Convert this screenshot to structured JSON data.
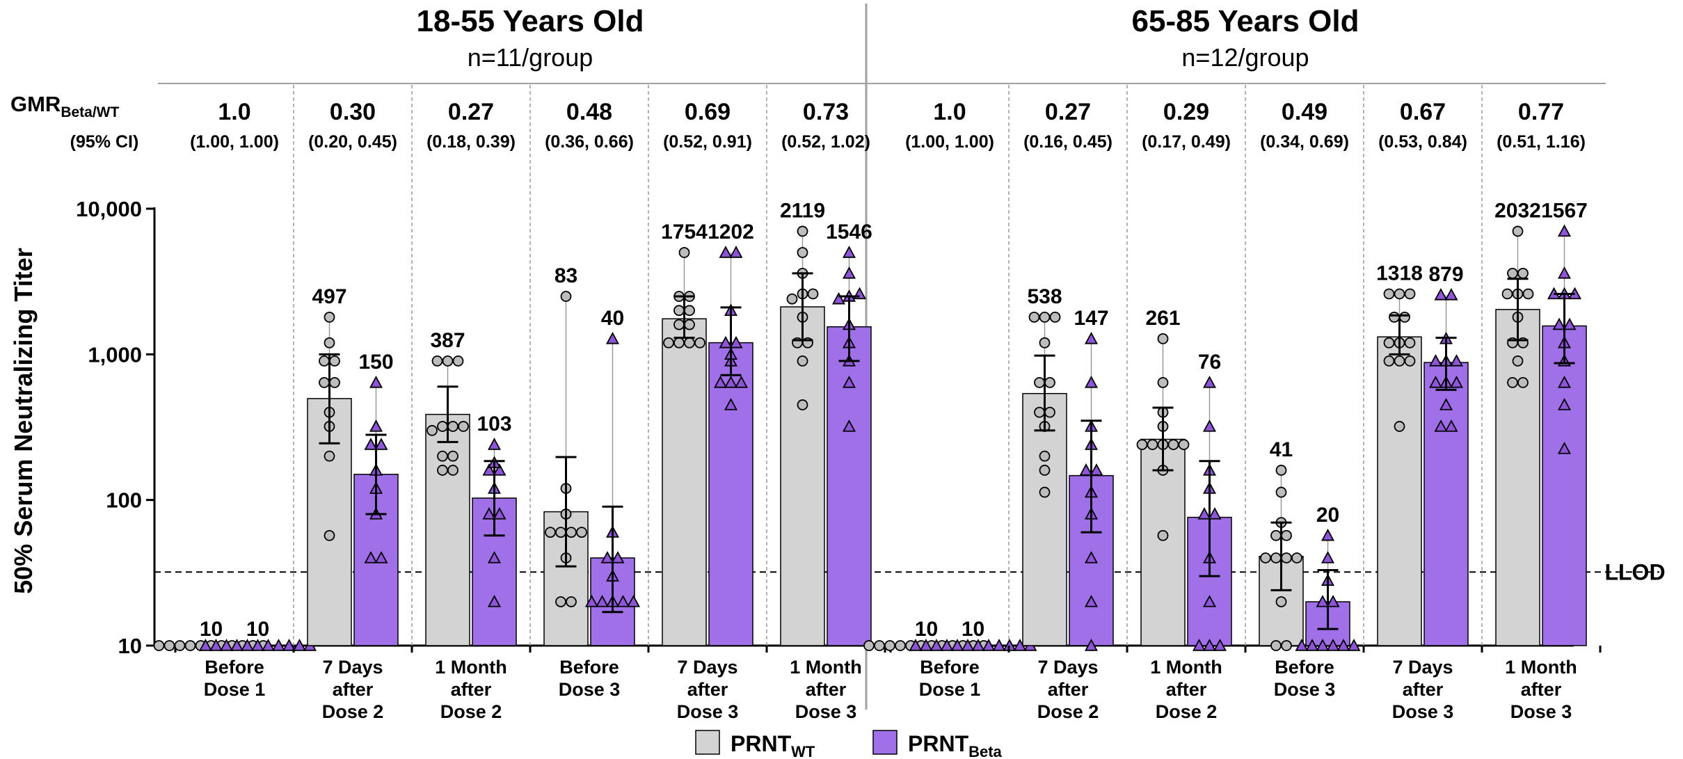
{
  "chart_data": {
    "type": "bar",
    "ylabel": "50% Serum Neutralizing Titer",
    "y_scale": "log",
    "ylim": [
      10,
      10000
    ],
    "y_ticks": [
      10,
      100,
      1000,
      10000
    ],
    "y_tick_labels": [
      "10",
      "100",
      "1,000",
      "10,000"
    ],
    "llod": 32,
    "llod_label": "LLOD",
    "gmr_header": {
      "main": "GMR",
      "sub": "Beta/WT",
      "ci": "(95% CI)"
    },
    "colors": {
      "wt": "#d3d3d3",
      "beta": "#a070e8"
    },
    "legend": [
      {
        "main": "PRNT",
        "sub": "WT",
        "color": "#d3d3d3",
        "marker": "circle"
      },
      {
        "main": "PRNT",
        "sub": "Beta",
        "color": "#a070e8",
        "marker": "triangle"
      }
    ],
    "series": [
      {
        "name": "PRNT WT",
        "marker": "circle"
      },
      {
        "name": "PRNT Beta",
        "marker": "triangle"
      }
    ],
    "panels": [
      {
        "title": "18-55 Years Old",
        "subtitle": "n=11/group",
        "groups": [
          {
            "label1": "Before",
            "label2": "Dose 1",
            "label3": "",
            "gmr": "1.0",
            "ci": "(1.00, 1.00)",
            "wt": {
              "gmt": 10,
              "ci": null,
              "points": [
                10,
                10,
                10,
                10,
                10,
                10,
                10,
                10,
                10,
                10,
                10
              ]
            },
            "beta": {
              "gmt": 10,
              "ci": null,
              "points": [
                10,
                10,
                10,
                10,
                10,
                10,
                10,
                10,
                10,
                10,
                10
              ]
            }
          },
          {
            "label1": "7 Days",
            "label2": "after",
            "label3": "Dose 2",
            "gmr": "0.30",
            "ci": "(0.20, 0.45)",
            "wt": {
              "gmt": 497,
              "ci": [
                245,
                1000
              ],
              "points": [
                57,
                200,
                320,
                400,
                640,
                640,
                900,
                900,
                1200,
                1800
              ]
            },
            "beta": {
              "gmt": 150,
              "ci": [
                80,
                280
              ],
              "points": [
                40,
                40,
                80,
                120,
                160,
                240,
                240,
                320,
                640
              ]
            }
          },
          {
            "label1": "1 Month",
            "label2": "after",
            "label3": "Dose 2",
            "gmr": "0.27",
            "ci": "(0.18, 0.39)",
            "wt": {
              "gmt": 387,
              "ci": [
                250,
                600
              ],
              "points": [
                160,
                160,
                200,
                200,
                300,
                320,
                320,
                320,
                900,
                900,
                900
              ]
            },
            "beta": {
              "gmt": 103,
              "ci": [
                57,
                185
              ],
              "points": [
                20,
                40,
                80,
                80,
                120,
                160,
                160,
                180,
                240
              ]
            }
          },
          {
            "label1": "Before",
            "label2": "Dose 3",
            "label3": "",
            "gmr": "0.48",
            "ci": "(0.36, 0.66)",
            "wt": {
              "gmt": 83,
              "ci": [
                35,
                197
              ],
              "points": [
                20,
                20,
                40,
                60,
                60,
                60,
                60,
                80,
                120,
                2500
              ]
            },
            "beta": {
              "gmt": 40,
              "ci": [
                17,
                90
              ],
              "points": [
                20,
                20,
                20,
                20,
                20,
                30,
                40,
                40,
                60,
                1280
              ]
            }
          },
          {
            "label1": "7 Days",
            "label2": "after",
            "label3": "Dose 3",
            "gmr": "0.69",
            "ci": "(0.52, 0.91)",
            "wt": {
              "gmt": 1754,
              "ci": [
                1300,
                2500
              ],
              "points": [
                1200,
                1200,
                1200,
                1200,
                1600,
                1600,
                2000,
                2000,
                2500,
                2500,
                5000
              ]
            },
            "beta": {
              "gmt": 1202,
              "ci": [
                720,
                2100
              ],
              "points": [
                450,
                640,
                640,
                640,
                900,
                1000,
                1200,
                1200,
                2000,
                5000,
                5000
              ]
            }
          },
          {
            "label1": "1 Month",
            "label2": "after",
            "label3": "Dose 3",
            "gmr": "0.73",
            "ci": "(0.52, 1.02)",
            "wt": {
              "gmt": 2119,
              "ci": [
                1250,
                3600
              ],
              "points": [
                450,
                900,
                1200,
                1200,
                1800,
                2400,
                2600,
                2600,
                3600,
                5000,
                7000
              ]
            },
            "beta": {
              "gmt": 1546,
              "ci": [
                900,
                2500
              ],
              "points": [
                320,
                640,
                900,
                1200,
                1600,
                2400,
                2500,
                2600,
                3600,
                5000
              ]
            }
          }
        ]
      },
      {
        "title": "65-85 Years Old",
        "subtitle": "n=12/group",
        "groups": [
          {
            "label1": "Before",
            "label2": "Dose 1",
            "label3": "",
            "gmr": "1.0",
            "ci": "(1.00, 1.00)",
            "wt": {
              "gmt": 10,
              "ci": null,
              "points": [
                10,
                10,
                10,
                10,
                10,
                10,
                10,
                10,
                10,
                10,
                10,
                10
              ]
            },
            "beta": {
              "gmt": 10,
              "ci": null,
              "points": [
                10,
                10,
                10,
                10,
                10,
                10,
                10,
                10,
                10,
                10,
                10,
                10
              ]
            }
          },
          {
            "label1": "7 Days",
            "label2": "after",
            "label3": "Dose 2",
            "gmr": "0.27",
            "ci": "(0.16, 0.45)",
            "wt": {
              "gmt": 538,
              "ci": [
                300,
                980
              ],
              "points": [
                113,
                160,
                200,
                320,
                400,
                400,
                640,
                640,
                1200,
                1800,
                1800,
                1800
              ]
            },
            "beta": {
              "gmt": 147,
              "ci": [
                60,
                350
              ],
              "points": [
                10,
                20,
                40,
                80,
                113,
                160,
                160,
                240,
                320,
                640,
                1280
              ]
            }
          },
          {
            "label1": "1 Month",
            "label2": "after",
            "label3": "Dose 2",
            "gmr": "0.29",
            "ci": "(0.17, 0.49)",
            "wt": {
              "gmt": 261,
              "ci": [
                160,
                430
              ],
              "points": [
                57,
                160,
                240,
                240,
                240,
                240,
                240,
                320,
                400,
                640,
                1280
              ]
            },
            "beta": {
              "gmt": 76,
              "ci": [
                30,
                185
              ],
              "points": [
                10,
                10,
                10,
                20,
                40,
                80,
                80,
                120,
                160,
                320,
                640
              ]
            }
          },
          {
            "label1": "Before",
            "label2": "Dose 3",
            "label3": "",
            "gmr": "0.49",
            "ci": "(0.34, 0.69)",
            "wt": {
              "gmt": 41,
              "ci": [
                24,
                70
              ],
              "points": [
                10,
                10,
                20,
                40,
                40,
                40,
                40,
                57,
                57,
                70,
                113,
                160
              ]
            },
            "beta": {
              "gmt": 20,
              "ci": [
                13,
                33
              ],
              "points": [
                10,
                10,
                10,
                10,
                10,
                10,
                20,
                20,
                28,
                40,
                57
              ]
            }
          },
          {
            "label1": "7 Days",
            "label2": "after",
            "label3": "Dose 3",
            "gmr": "0.67",
            "ci": "(0.53, 0.84)",
            "wt": {
              "gmt": 1318,
              "ci": [
                1000,
                1850
              ],
              "points": [
                320,
                900,
                900,
                900,
                1200,
                1200,
                1200,
                1800,
                1800,
                2600,
                2600,
                2600
              ]
            },
            "beta": {
              "gmt": 879,
              "ci": [
                570,
                1300
              ],
              "points": [
                320,
                320,
                450,
                640,
                640,
                640,
                900,
                900,
                900,
                1280,
                2560,
                2560
              ]
            }
          },
          {
            "label1": "1 Month",
            "label2": "after",
            "label3": "Dose 3",
            "gmr": "0.77",
            "ci": "(0.51, 1.16)",
            "wt": {
              "gmt": 2032,
              "ci": [
                1250,
                3300
              ],
              "points": [
                640,
                640,
                900,
                1200,
                1200,
                1800,
                2600,
                2600,
                2600,
                3600,
                3600,
                7000
              ]
            },
            "beta": {
              "gmt": 1567,
              "ci": [
                870,
                2600
              ],
              "points": [
                225,
                450,
                640,
                900,
                1200,
                1600,
                1600,
                2600,
                2600,
                2600,
                3600,
                7000
              ]
            }
          }
        ]
      }
    ]
  }
}
